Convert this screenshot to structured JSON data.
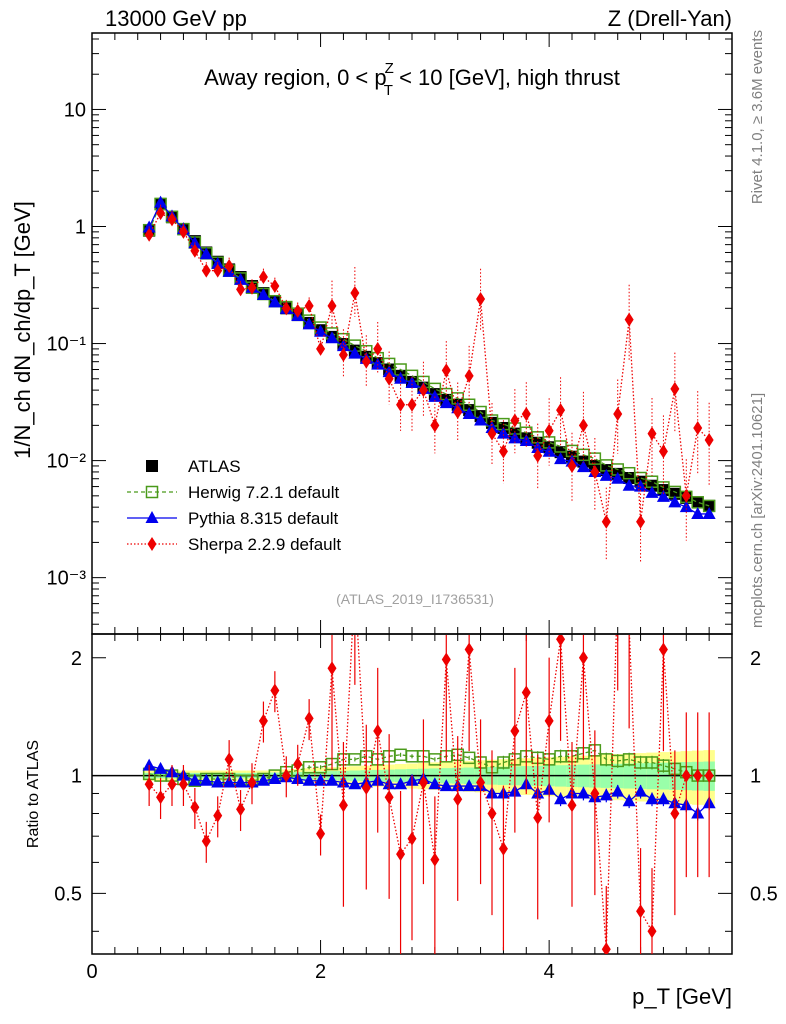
{
  "header": {
    "left": "13000 GeV pp",
    "right": "Z (Drell-Yan)",
    "side_top": "Rivet 4.1.0, ≥ 3.6M events",
    "side_bottom": "mcplots.cern.ch [arXiv:2401.10621]",
    "analysis_id": "(ATLAS_2019_I1736531)"
  },
  "chart_data": [
    {
      "type": "scatter",
      "title": "Away region, 0 < pT^Z < 10 [GeV], high thrust",
      "title_parts": {
        "pre": "Away region, 0 < p",
        "sup": "Z",
        "sub": "T",
        "post": " < 10 [GeV], high thrust"
      },
      "ylabel": "1/N_ch dN_ch/dp_T [GeV]",
      "xlabel": "p_T [GeV]",
      "yscale": "log",
      "ylim": [
        0.00033,
        45
      ],
      "xlim": [
        0,
        5.6
      ],
      "ytick_labels": [
        "10",
        "1",
        "10⁻¹",
        "10⁻²",
        "10⁻³"
      ],
      "legend_position": "lower-left",
      "x": [
        0.5,
        0.6,
        0.7,
        0.8,
        0.9,
        1.0,
        1.1,
        1.2,
        1.3,
        1.4,
        1.5,
        1.6,
        1.7,
        1.8,
        1.9,
        2.0,
        2.1,
        2.2,
        2.3,
        2.4,
        2.5,
        2.6,
        2.7,
        2.8,
        2.9,
        3.0,
        3.1,
        3.2,
        3.3,
        3.4,
        3.5,
        3.6,
        3.7,
        3.8,
        3.9,
        4.0,
        4.1,
        4.2,
        4.3,
        4.4,
        4.5,
        4.6,
        4.7,
        4.8,
        4.9,
        5.0,
        5.1,
        5.2,
        5.3,
        5.4
      ],
      "series": [
        {
          "name": "ATLAS",
          "color": "#000000",
          "marker": "filled-square",
          "values": [
            0.92,
            1.55,
            1.2,
            0.95,
            0.75,
            0.6,
            0.5,
            0.43,
            0.37,
            0.31,
            0.27,
            0.23,
            0.2,
            0.175,
            0.15,
            0.13,
            0.114,
            0.099,
            0.087,
            0.077,
            0.068,
            0.06,
            0.053,
            0.047,
            0.042,
            0.037,
            0.033,
            0.03,
            0.027,
            0.024,
            0.021,
            0.019,
            0.017,
            0.0155,
            0.0142,
            0.013,
            0.0118,
            0.0108,
            0.0098,
            0.009,
            0.0083,
            0.0077,
            0.0071,
            0.0066,
            0.0061,
            0.0056,
            0.0052,
            0.0048,
            0.0044,
            0.0041
          ]
        },
        {
          "name": "Herwig 7.2.1 default",
          "color": "#4a9a1a",
          "marker": "open-square",
          "values": [
            0.93,
            1.56,
            1.21,
            0.95,
            0.73,
            0.59,
            0.49,
            0.42,
            0.36,
            0.3,
            0.265,
            0.23,
            0.205,
            0.18,
            0.157,
            0.137,
            0.122,
            0.109,
            0.096,
            0.086,
            0.075,
            0.067,
            0.06,
            0.053,
            0.047,
            0.041,
            0.037,
            0.034,
            0.03,
            0.026,
            0.022,
            0.0205,
            0.0188,
            0.0173,
            0.0158,
            0.0143,
            0.0132,
            0.0121,
            0.0112,
            0.0104,
            0.0091,
            0.0084,
            0.0078,
            0.0071,
            0.0066,
            0.0059,
            0.0054,
            0.0049,
            0.0044,
            0.0041
          ]
        },
        {
          "name": "Pythia 8.315 default",
          "color": "#0000ee",
          "marker": "filled-triangle",
          "values": [
            0.98,
            1.6,
            1.22,
            0.95,
            0.72,
            0.58,
            0.48,
            0.41,
            0.35,
            0.3,
            0.26,
            0.225,
            0.198,
            0.172,
            0.146,
            0.126,
            0.111,
            0.095,
            0.082,
            0.074,
            0.066,
            0.057,
            0.05,
            0.046,
            0.041,
            0.035,
            0.031,
            0.028,
            0.025,
            0.022,
            0.019,
            0.017,
            0.0155,
            0.0147,
            0.0128,
            0.0119,
            0.0103,
            0.0098,
            0.0088,
            0.008,
            0.0074,
            0.007,
            0.0061,
            0.006,
            0.0053,
            0.0049,
            0.0044,
            0.004,
            0.0035,
            0.0035
          ]
        },
        {
          "name": "Sherpa 2.2.9 default",
          "color": "#ee0000",
          "marker": "filled-diamond",
          "values": [
            0.85,
            1.3,
            1.15,
            0.9,
            0.62,
            0.42,
            0.42,
            0.46,
            0.29,
            0.3,
            0.37,
            0.31,
            0.2,
            0.19,
            0.21,
            0.09,
            0.21,
            0.08,
            0.27,
            0.07,
            0.09,
            0.05,
            0.03,
            0.03,
            0.04,
            0.02,
            0.059,
            0.026,
            0.053,
            0.24,
            0.017,
            0.012,
            0.022,
            0.025,
            0.011,
            0.018,
            0.027,
            0.009,
            0.02,
            0.008,
            0.003,
            0.025,
            0.16,
            0.003,
            0.017,
            0.012,
            0.041,
            0.005,
            0.019,
            0.015
          ]
        }
      ]
    },
    {
      "type": "line",
      "ylabel": "Ratio to ATLAS",
      "xlabel": "p_T [GeV]",
      "yscale": "log",
      "ylim": [
        0.35,
        2.3
      ],
      "xlim": [
        0,
        5.6
      ],
      "xtick_labels": [
        "0",
        "2",
        "4"
      ],
      "ytick_labels": [
        "0.5",
        "1",
        "2"
      ],
      "x": [
        0.5,
        0.6,
        0.7,
        0.8,
        0.9,
        1.0,
        1.1,
        1.2,
        1.3,
        1.4,
        1.5,
        1.6,
        1.7,
        1.8,
        1.9,
        2.0,
        2.1,
        2.2,
        2.3,
        2.4,
        2.5,
        2.6,
        2.7,
        2.8,
        2.9,
        3.0,
        3.1,
        3.2,
        3.3,
        3.4,
        3.5,
        3.6,
        3.7,
        3.8,
        3.9,
        4.0,
        4.1,
        4.2,
        4.3,
        4.4,
        4.5,
        4.6,
        4.7,
        4.8,
        4.9,
        5.0,
        5.1,
        5.2,
        5.3,
        5.4
      ],
      "series": [
        {
          "name": "Herwig 7.2.1 default",
          "color": "#4a9a1a",
          "values": [
            1.01,
            1.0,
            1.0,
            0.98,
            0.97,
            0.98,
            0.98,
            0.98,
            0.97,
            0.97,
            0.98,
            1.0,
            1.02,
            1.03,
            1.05,
            1.05,
            1.07,
            1.1,
            1.1,
            1.12,
            1.1,
            1.12,
            1.13,
            1.12,
            1.12,
            1.1,
            1.12,
            1.13,
            1.11,
            1.08,
            1.05,
            1.08,
            1.1,
            1.12,
            1.11,
            1.1,
            1.12,
            1.12,
            1.14,
            1.16,
            1.1,
            1.09,
            1.1,
            1.08,
            1.08,
            1.06,
            1.04,
            1.02,
            1.0,
            1.0
          ]
        },
        {
          "name": "Pythia 8.315 default",
          "color": "#0000ee",
          "values": [
            1.06,
            1.04,
            1.02,
            1.0,
            0.97,
            0.97,
            0.96,
            0.96,
            0.96,
            0.96,
            0.97,
            0.98,
            0.99,
            0.98,
            0.97,
            0.97,
            0.97,
            0.96,
            0.95,
            0.96,
            0.97,
            0.95,
            0.95,
            0.97,
            0.98,
            0.95,
            0.94,
            0.94,
            0.94,
            0.94,
            0.9,
            0.9,
            0.91,
            0.95,
            0.9,
            0.92,
            0.87,
            0.9,
            0.9,
            0.88,
            0.89,
            0.91,
            0.86,
            0.91,
            0.87,
            0.87,
            0.85,
            0.84,
            0.8,
            0.85
          ]
        },
        {
          "name": "Sherpa 2.2.9 default",
          "color": "#ee0000",
          "values": [
            0.95,
            0.88,
            0.95,
            0.95,
            0.83,
            0.68,
            0.79,
            1.1,
            0.82,
            0.96,
            1.38,
            1.65,
            1.0,
            1.07,
            1.4,
            0.71,
            1.88,
            0.84,
            3.1,
            0.93,
            1.3,
            0.88,
            0.63,
            0.69,
            0.96,
            0.61,
            1.98,
            0.87,
            2.1,
            0.96,
            0.8,
            0.65,
            1.3,
            1.63,
            0.78,
            1.38,
            2.23,
            0.84,
            2.0,
            0.9,
            0.36,
            3.0,
            2.4,
            0.45,
            0.4,
            2.1,
            0.8,
            1.0,
            1.0,
            1.0
          ]
        }
      ]
    }
  ]
}
